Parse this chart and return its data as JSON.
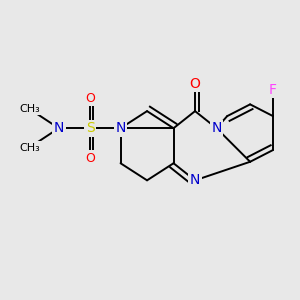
{
  "background_color": "#e8e8e8",
  "figsize": [
    3.0,
    3.0
  ],
  "dpi": 100,
  "bond_color": "#000000",
  "bond_lw": 1.4,
  "atom_colors": {
    "N": "#0000cc",
    "S": "#cccc00",
    "O": "#ff0000",
    "F": "#ff44ff",
    "C": "#000000"
  }
}
